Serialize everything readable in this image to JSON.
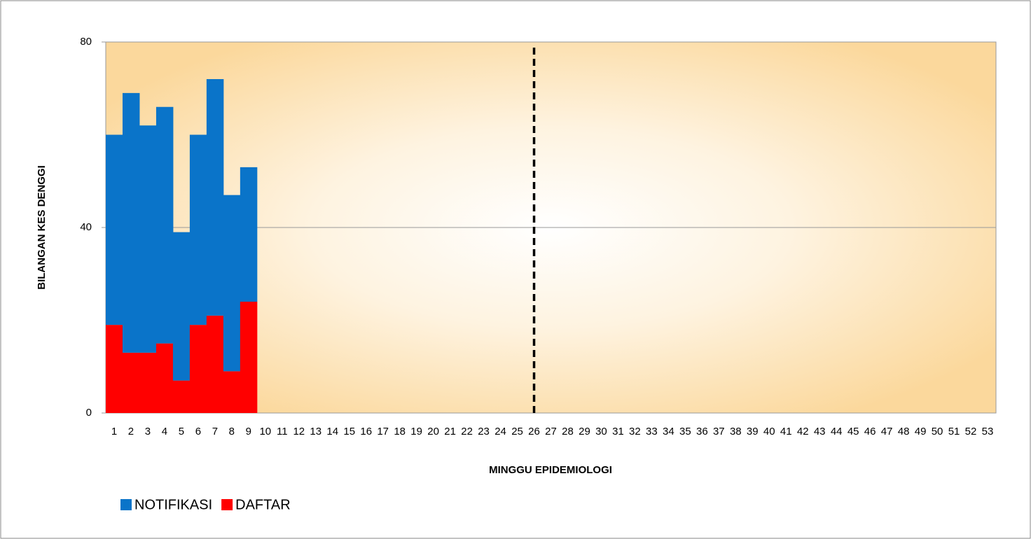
{
  "chart_data": {
    "type": "bar",
    "stacked": true,
    "x_label": "MINGGU EPIDEMIOLOGI",
    "y_label": "BILANGAN KES DENGGI",
    "categories": [
      "1",
      "2",
      "3",
      "4",
      "5",
      "6",
      "7",
      "8",
      "9",
      "10",
      "11",
      "12",
      "13",
      "14",
      "15",
      "16",
      "17",
      "18",
      "19",
      "20",
      "21",
      "22",
      "23",
      "24",
      "25",
      "26",
      "27",
      "28",
      "29",
      "30",
      "31",
      "32",
      "33",
      "34",
      "35",
      "36",
      "37",
      "38",
      "39",
      "40",
      "41",
      "42",
      "43",
      "44",
      "45",
      "46",
      "47",
      "48",
      "49",
      "50",
      "51",
      "52",
      "53"
    ],
    "series": [
      {
        "name": "NOTIFIKASI",
        "color": "#0a74c9",
        "values": [
          41,
          56,
          49,
          51,
          32,
          41,
          51,
          38,
          29,
          null,
          null,
          null,
          null,
          null,
          null,
          null,
          null,
          null,
          null,
          null,
          null,
          null,
          null,
          null,
          null,
          null,
          null,
          null,
          null,
          null,
          null,
          null,
          null,
          null,
          null,
          null,
          null,
          null,
          null,
          null,
          null,
          null,
          null,
          null,
          null,
          null,
          null,
          null,
          null,
          null,
          null,
          null,
          null
        ]
      },
      {
        "name": "DAFTAR",
        "color": "#ff0000",
        "values": [
          19,
          13,
          13,
          15,
          7,
          19,
          21,
          9,
          24,
          null,
          null,
          null,
          null,
          null,
          null,
          null,
          null,
          null,
          null,
          null,
          null,
          null,
          null,
          null,
          null,
          null,
          null,
          null,
          null,
          null,
          null,
          null,
          null,
          null,
          null,
          null,
          null,
          null,
          null,
          null,
          null,
          null,
          null,
          null,
          null,
          null,
          null,
          null,
          null,
          null,
          null,
          null,
          null
        ]
      }
    ],
    "stack_order": [
      "DAFTAR",
      "NOTIFIKASI"
    ],
    "vline_at": "26",
    "ylim": [
      0,
      80
    ],
    "yticks": [
      0,
      40,
      80
    ],
    "grid": true,
    "legend": "bottom-left"
  }
}
